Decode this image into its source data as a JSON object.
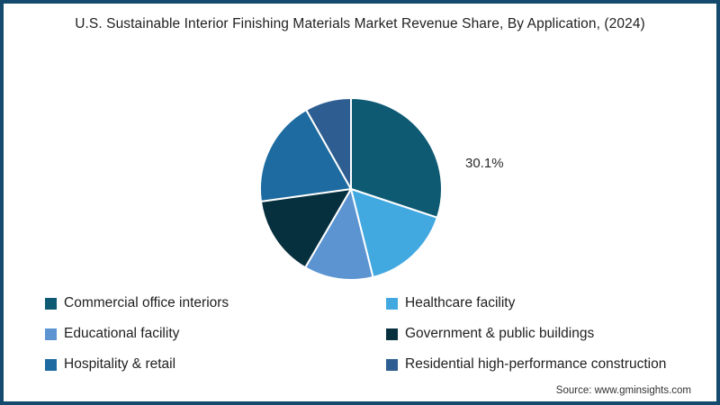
{
  "title": "U.S. Sustainable Interior Finishing Materials Market Revenue Share, By Application, (2024)",
  "source": "Source: www.gminsights.com",
  "frame_color": "#134a6d",
  "chart_data": {
    "type": "pie",
    "title": "U.S. Sustainable Interior Finishing Materials Market Revenue Share, By Application, (2024)",
    "unit": "percent revenue share",
    "labels": [
      "Commercial office interiors",
      "Healthcare facility",
      "Educational facility",
      "Government & public buildings",
      "Hospitality & retail",
      "Residential high-performance construction"
    ],
    "values": [
      30.1,
      16.0,
      12.3,
      14.4,
      19.0,
      8.2
    ],
    "colors": [
      "#0e5a72",
      "#41a8e0",
      "#5b94d1",
      "#07303f",
      "#1d6ba0",
      "#2e5e91"
    ],
    "start_angle_deg": 0,
    "direction": "clockwise",
    "legend_position": "bottom",
    "annotation": {
      "text": "30.1%",
      "slice_index": 0
    }
  }
}
